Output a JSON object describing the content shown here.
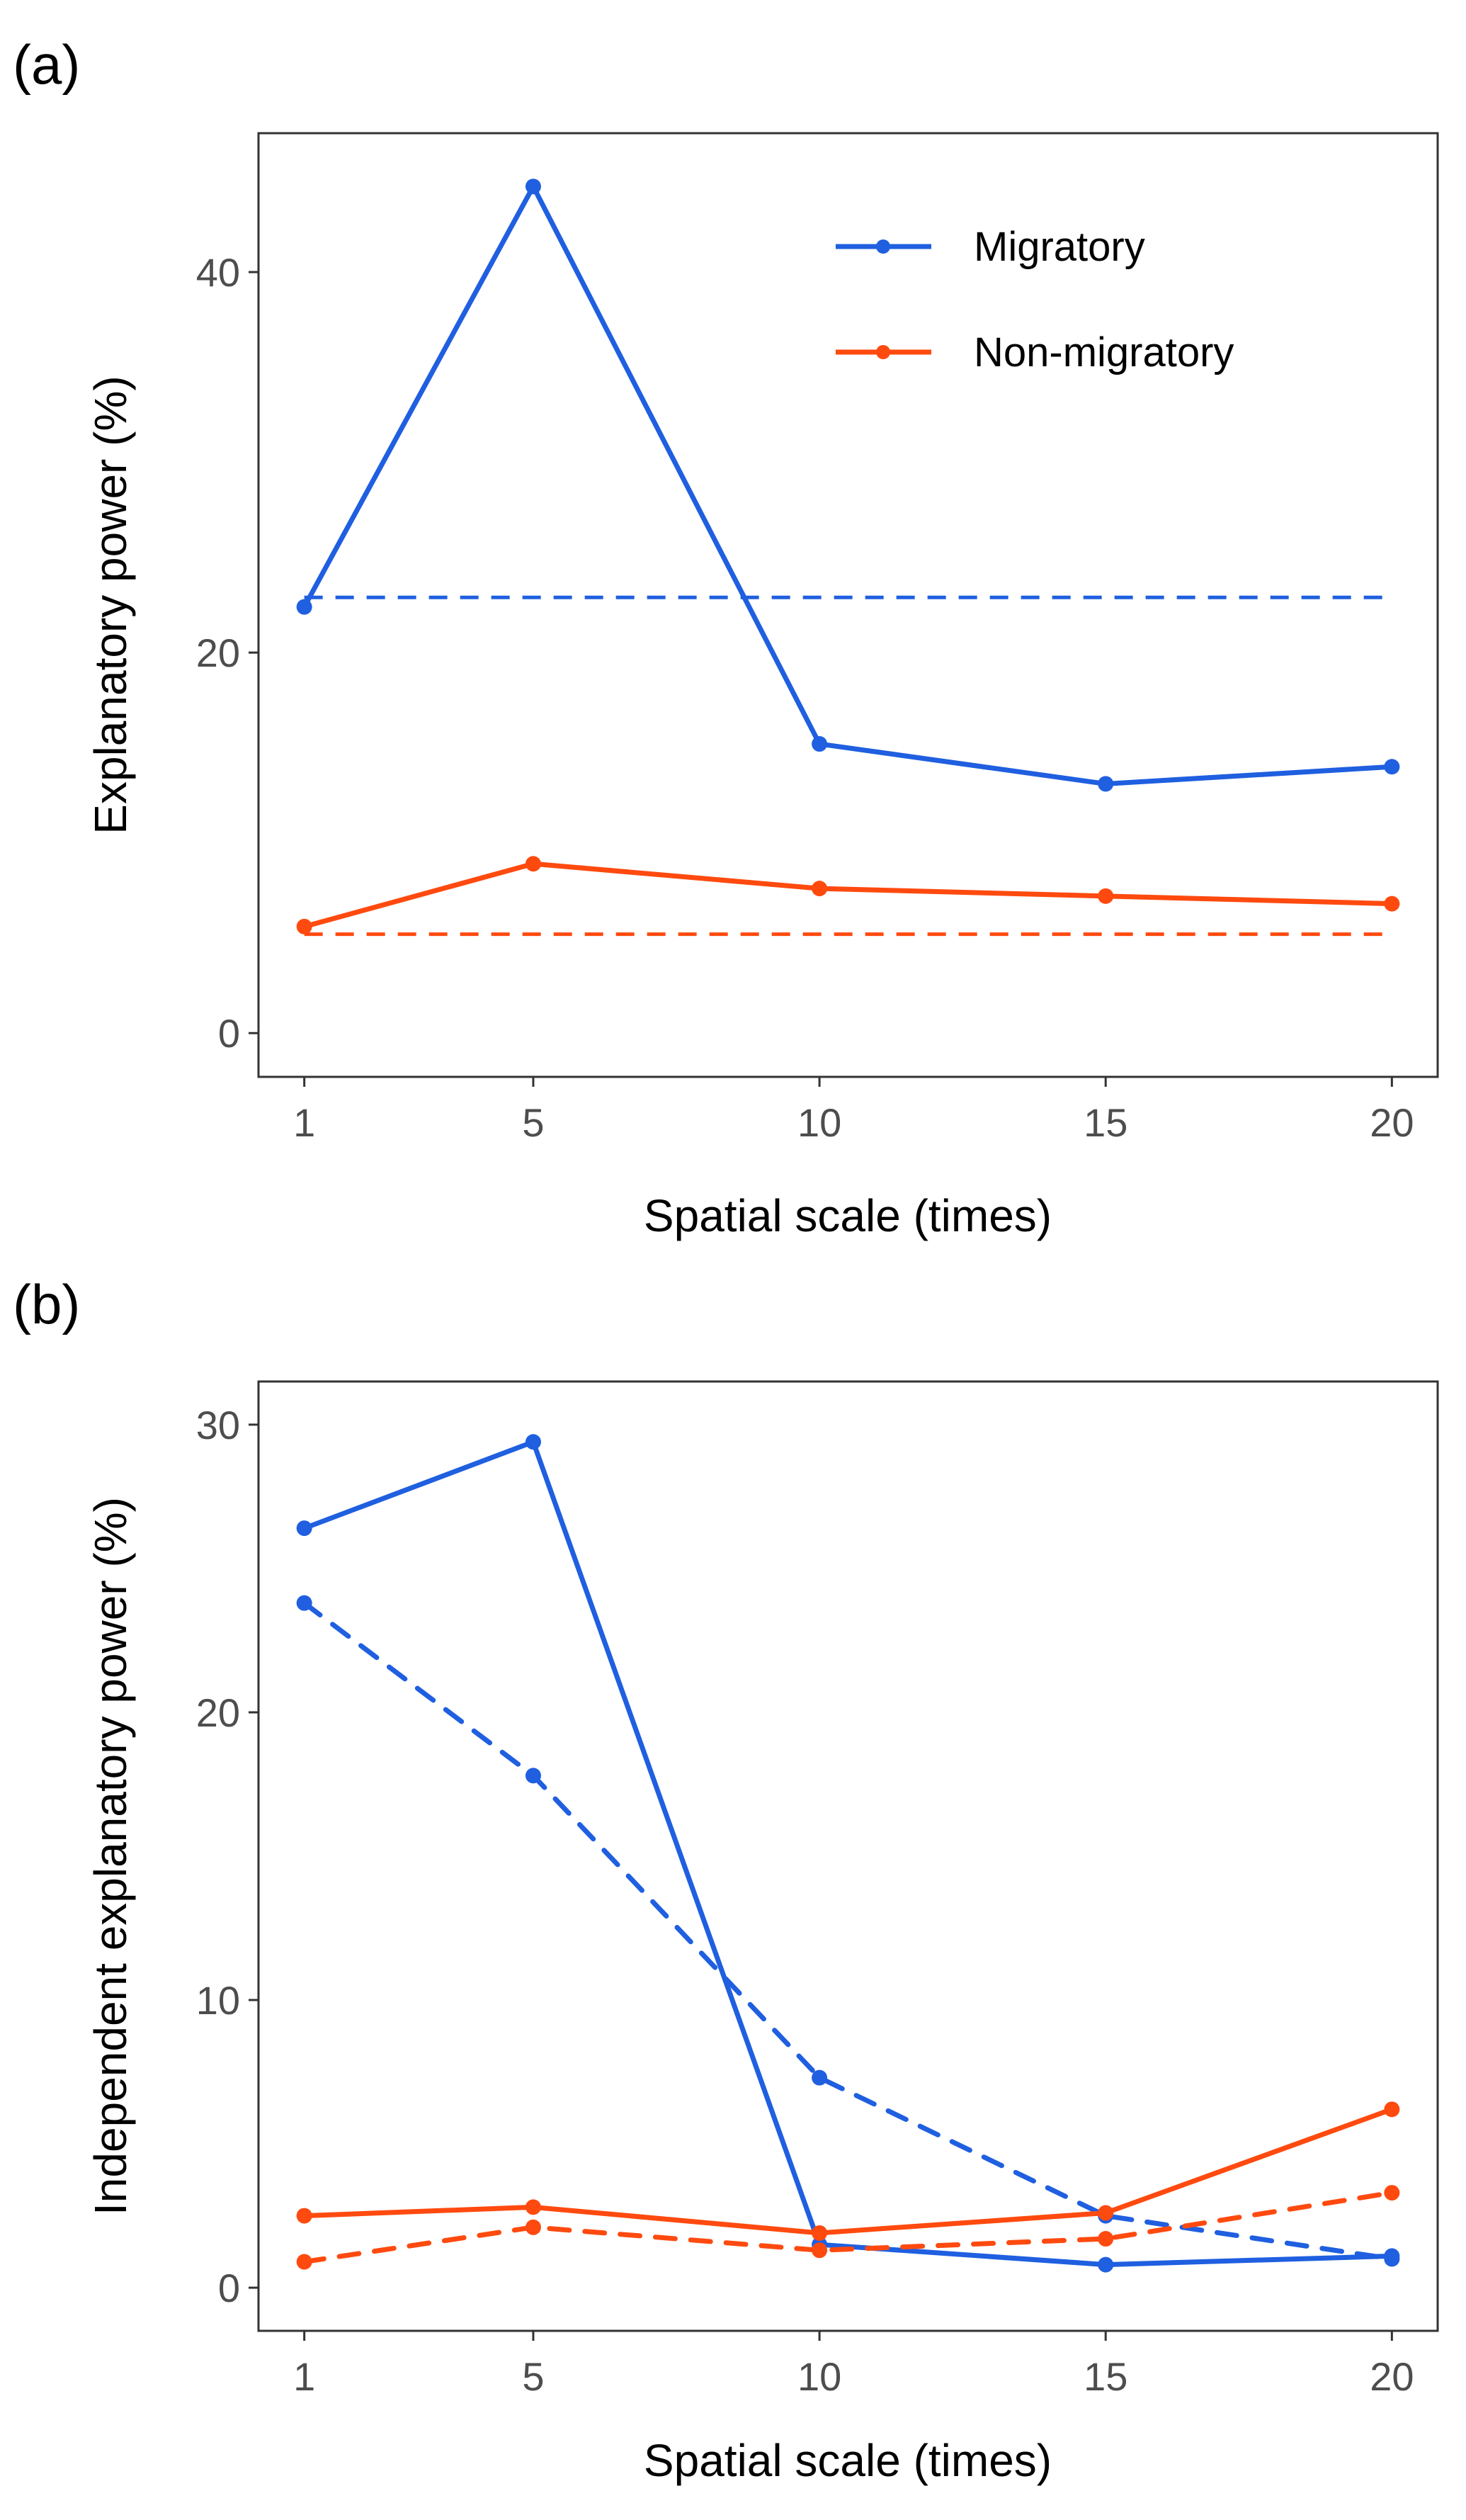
{
  "figure": {
    "colors": {
      "migratory": "#1f5fe0",
      "non_migratory": "#ff4a0f"
    }
  },
  "chart_data": [
    {
      "type": "line",
      "panel_label": "(a)",
      "title": "",
      "xlabel": "Spatial scale (times)",
      "ylabel": "Explanatory power (%)",
      "x": [
        1,
        5,
        10,
        15,
        20
      ],
      "x_ticks": [
        "1",
        "5",
        "10",
        "15",
        "20"
      ],
      "y_ticks": [
        "0",
        "20",
        "40"
      ],
      "xlim": [
        0.2,
        20.8
      ],
      "ylim": [
        -2.3,
        47.3
      ],
      "grid": false,
      "legend": {
        "position": "top-right",
        "entries": [
          {
            "label": "Migratory",
            "series": "migratory"
          },
          {
            "label": "Non-migratory",
            "series": "non_migratory"
          }
        ]
      },
      "series": [
        {
          "name": "Migratory",
          "key": "migratory",
          "style": "solid",
          "markers": true,
          "values": [
            22.4,
            44.5,
            15.2,
            13.1,
            14.0
          ]
        },
        {
          "name": "Non-migratory",
          "key": "non_migratory",
          "style": "solid",
          "markers": true,
          "values": [
            5.6,
            8.9,
            7.6,
            7.2,
            6.8
          ]
        }
      ],
      "reference_lines": [
        {
          "name": "Migratory reference",
          "key": "migratory",
          "style": "dashed",
          "y": 22.9
        },
        {
          "name": "Non-migratory reference",
          "key": "non_migratory",
          "style": "dashed",
          "y": 5.2
        }
      ]
    },
    {
      "type": "line",
      "panel_label": "(b)",
      "title": "",
      "xlabel": "Spatial scale (times)",
      "ylabel": "Independent explanatory power (%)",
      "x": [
        1,
        5,
        10,
        15,
        20
      ],
      "x_ticks": [
        "1",
        "5",
        "10",
        "15",
        "20"
      ],
      "y_ticks": [
        "0",
        "10",
        "20",
        "30"
      ],
      "xlim": [
        0.2,
        20.8
      ],
      "ylim": [
        -1.5,
        31.5
      ],
      "grid": false,
      "legend": null,
      "series": [
        {
          "name": "Migratory (solid)",
          "key": "migratory",
          "style": "solid",
          "markers": true,
          "values": [
            26.4,
            29.4,
            1.5,
            0.8,
            1.1
          ]
        },
        {
          "name": "Migratory (dashed)",
          "key": "migratory",
          "style": "dashed",
          "markers": true,
          "values": [
            23.8,
            17.8,
            7.3,
            2.5,
            1.0
          ]
        },
        {
          "name": "Non-migratory (solid)",
          "key": "non_migratory",
          "style": "solid",
          "markers": true,
          "values": [
            2.5,
            2.8,
            1.9,
            2.6,
            6.2
          ]
        },
        {
          "name": "Non-migratory (dashed)",
          "key": "non_migratory",
          "style": "dashed",
          "markers": true,
          "values": [
            0.9,
            2.1,
            1.3,
            1.7,
            3.3
          ]
        }
      ],
      "reference_lines": []
    }
  ]
}
